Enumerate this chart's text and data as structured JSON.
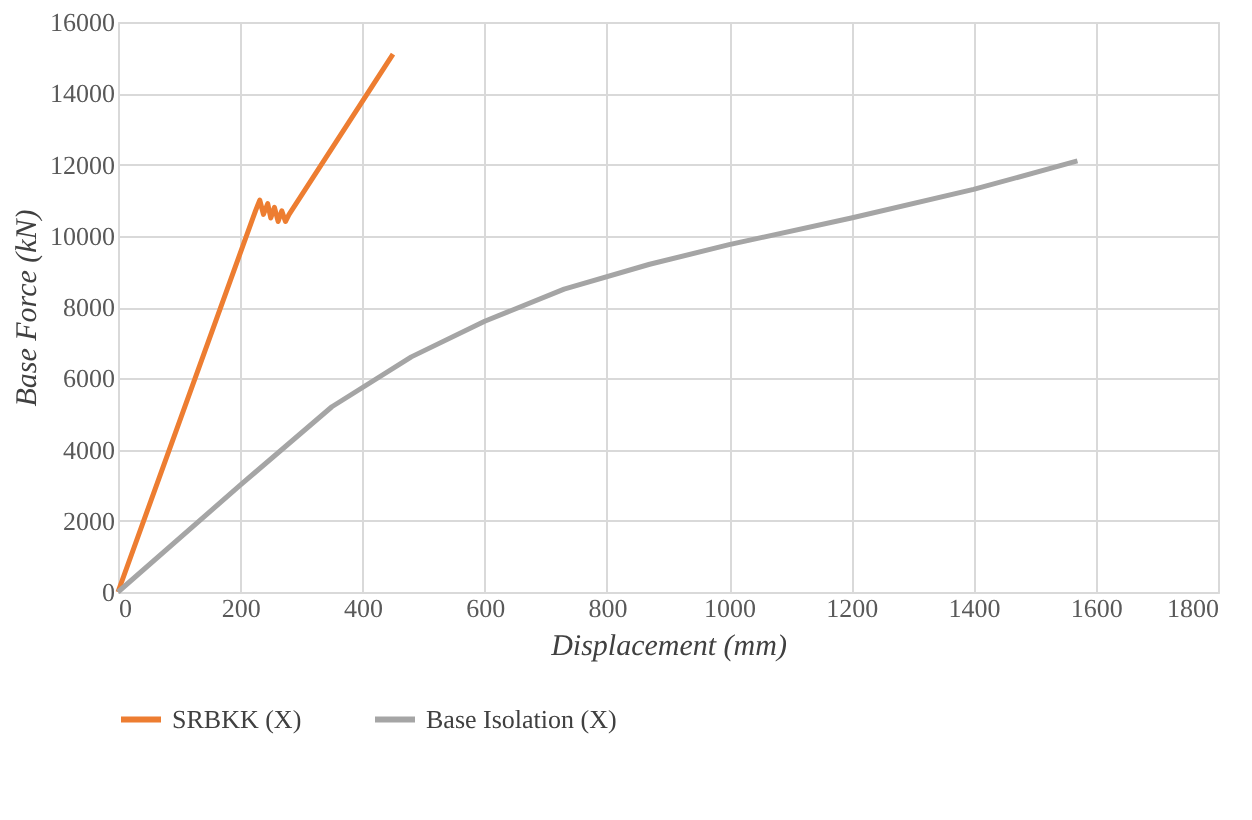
{
  "chart_data": {
    "type": "line",
    "xlabel": "Displacement (mm)",
    "ylabel": "Base Force (kN)",
    "xlim": [
      0,
      1800
    ],
    "xticks": [
      0,
      200,
      400,
      600,
      800,
      1000,
      1200,
      1400,
      1600,
      1800
    ],
    "ylim": [
      0,
      16000
    ],
    "yticks": [
      0,
      2000,
      4000,
      6000,
      8000,
      10000,
      12000,
      14000,
      16000
    ],
    "grid": true,
    "legend": "bottom",
    "marker": "none",
    "line_style": "solid",
    "series": [
      {
        "name": "SRBKK (X)",
        "color": "#ed7d31",
        "x": [
          0,
          225,
          232,
          238,
          245,
          250,
          256,
          262,
          268,
          274,
          280,
          450
        ],
        "values": [
          0,
          10700,
          11000,
          10600,
          10900,
          10500,
          10800,
          10400,
          10700,
          10400,
          10600,
          15100
        ]
      },
      {
        "name": "Base Isolation (X)",
        "color": "#a5a5a5",
        "x": [
          0,
          200,
          350,
          480,
          600,
          730,
          870,
          1000,
          1200,
          1400,
          1570
        ],
        "values": [
          0,
          3000,
          5200,
          6600,
          7600,
          8500,
          9200,
          9750,
          10500,
          11300,
          12100
        ]
      }
    ]
  }
}
